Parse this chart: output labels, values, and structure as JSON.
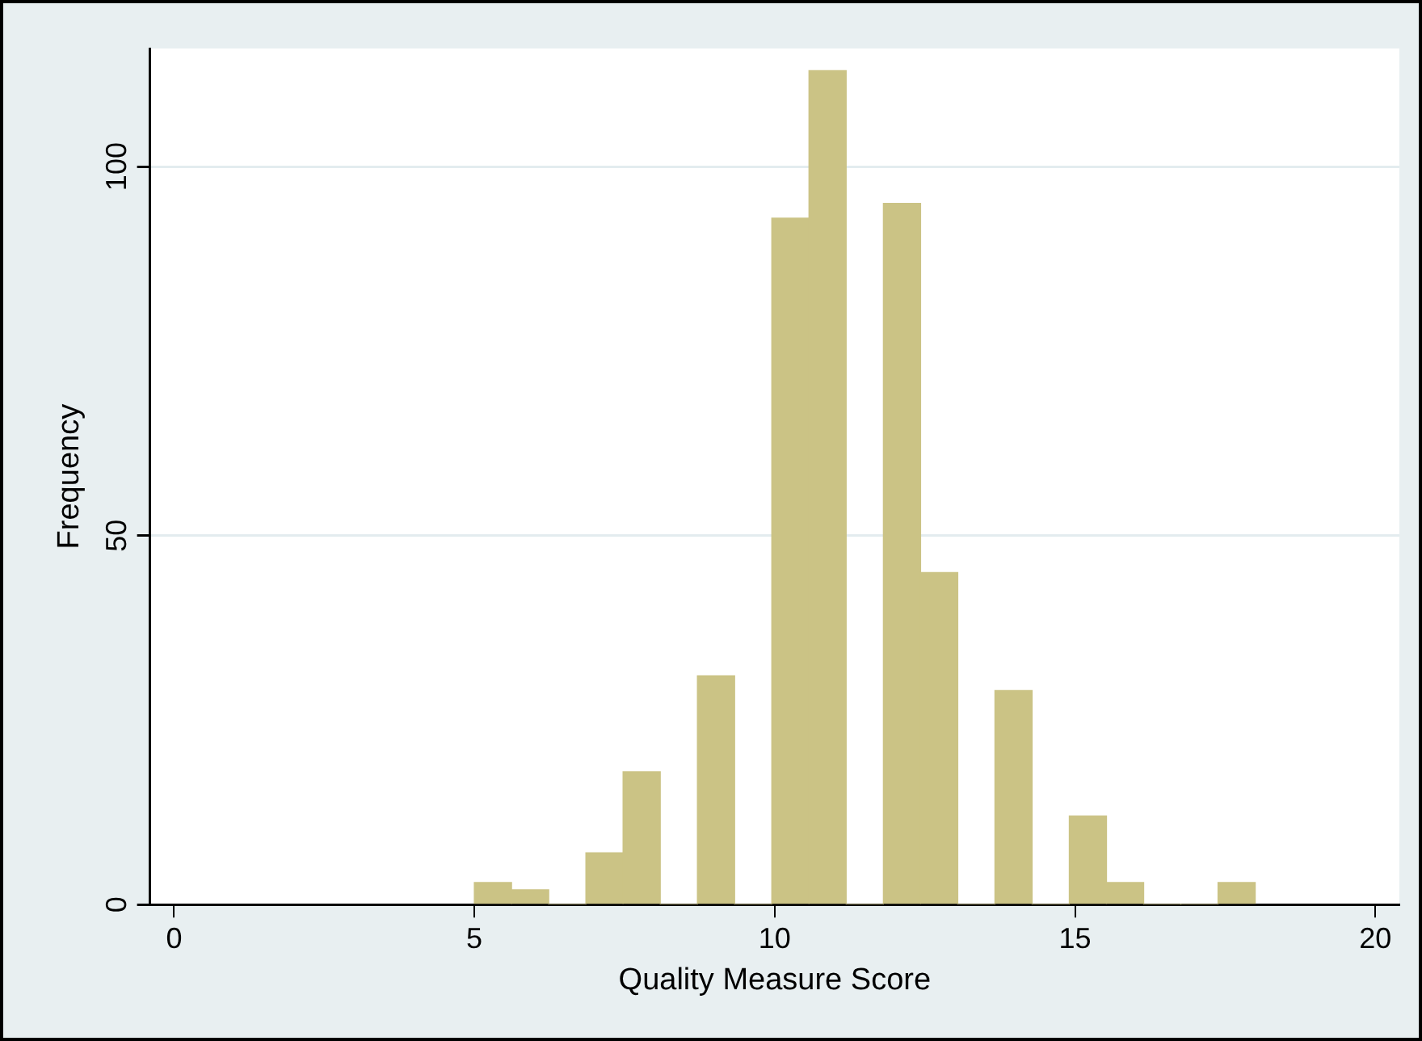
{
  "chart_data": {
    "type": "histogram",
    "xlabel": "Quality Measure Score",
    "ylabel": "Frequency",
    "bins": [
      5,
      5.619,
      6.238,
      6.857,
      7.476,
      8.095,
      8.714,
      9.333,
      9.952,
      10.571,
      11.19,
      11.81,
      12.429,
      13.048,
      13.667,
      14.286,
      14.905,
      15.524,
      16.143,
      16.762,
      17.381,
      18
    ],
    "values": [
      3,
      2,
      0,
      7,
      18,
      0,
      31,
      0,
      93,
      113,
      0,
      95,
      45,
      0,
      29,
      0,
      12,
      3,
      0,
      0,
      3
    ],
    "color": "#cbc385",
    "xlim": [
      -0.4,
      20.4
    ],
    "xticks": [
      0,
      5,
      10,
      15,
      20
    ],
    "ylim": [
      0,
      116
    ],
    "yticks": [
      0,
      50,
      100
    ],
    "grid": "y",
    "legend": false
  }
}
